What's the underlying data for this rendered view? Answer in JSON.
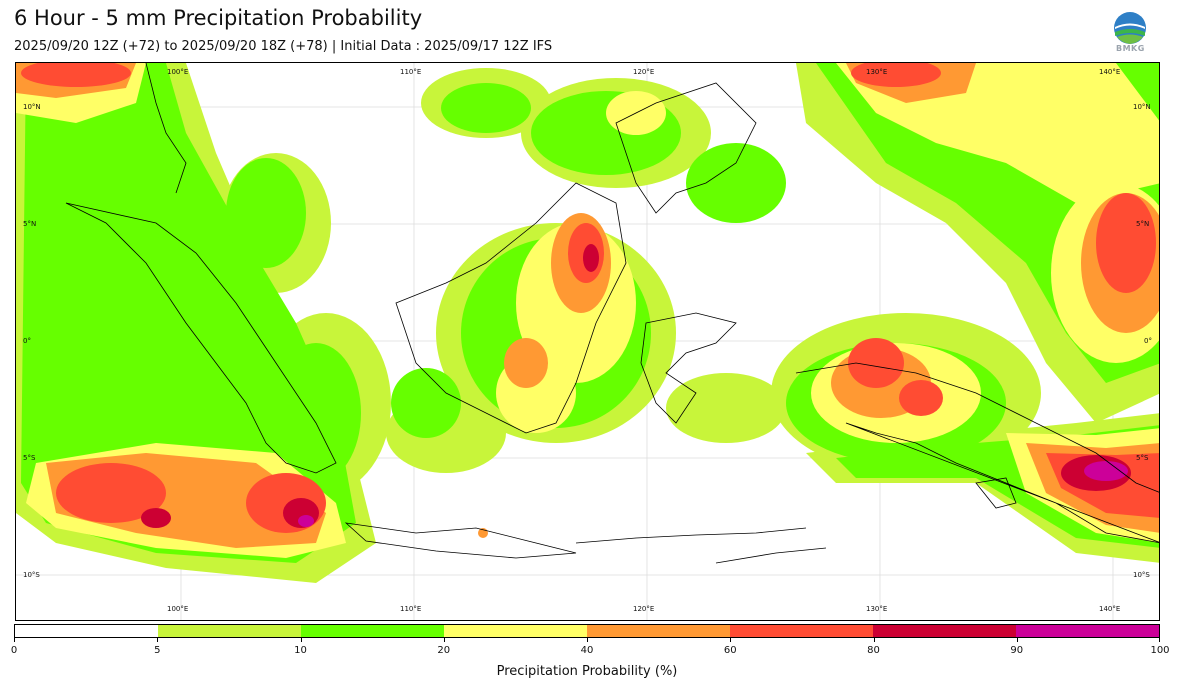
{
  "header": {
    "title": "6 Hour - 5 mm Precipitation Probability",
    "subtitle": "2025/09/20 12Z (+72) to 2025/09/20 18Z (+78) | Initial Data : 2025/09/17 12Z IFS",
    "logo_text": "BMKG"
  },
  "map": {
    "lon_labels_top": [
      "100°E",
      "110°E",
      "120°E",
      "130°E",
      "140°E"
    ],
    "lon_labels_bottom": [
      "100°E",
      "110°E",
      "120°E",
      "130°E",
      "140°E"
    ],
    "lat_labels_left": [
      "10°N",
      "5°N",
      "0°",
      "5°S",
      "10°S"
    ],
    "lat_labels_right": [
      "10°N",
      "5°N",
      "0°",
      "5°S",
      "10°S"
    ]
  },
  "colorbar": {
    "title": "Precipitation Probability (%)",
    "ticks": [
      "0",
      "5",
      "10",
      "20",
      "40",
      "60",
      "80",
      "90",
      "100"
    ],
    "colors": [
      "#ffffff",
      "#c8f53a",
      "#66ff00",
      "#ffff66",
      "#ff9933",
      "#ff4c33",
      "#cc0033",
      "#cc0099"
    ]
  }
}
